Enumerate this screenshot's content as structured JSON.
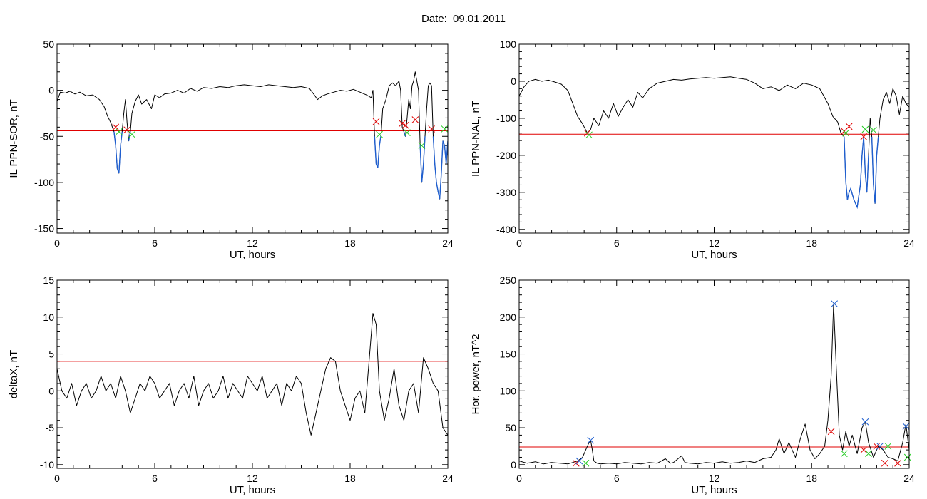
{
  "date_label": "Date:  09.01.2011",
  "chart_data": [
    {
      "id": "tl",
      "type": "line",
      "ylabel": "IL PPN-SOR, nT",
      "xlabel": "UT, hours",
      "xlim": [
        0,
        24
      ],
      "ylim": [
        -155,
        50
      ],
      "xticks": [
        0,
        6,
        12,
        18,
        24
      ],
      "yticks": [
        -150,
        -100,
        -50,
        0,
        50
      ],
      "grid": false,
      "series": [
        {
          "color": "#000000",
          "x": [
            0,
            0.2,
            0.5,
            0.8,
            1.1,
            1.4,
            1.8,
            2.2,
            2.6,
            2.9,
            3.1,
            3.3,
            3.5,
            3.6,
            3.7,
            3.8,
            3.9,
            4.0,
            4.1,
            4.2,
            4.3,
            4.4,
            4.5,
            4.6,
            4.8,
            5.0,
            5.2,
            5.5,
            5.8,
            6.0,
            6.3,
            6.6,
            7.0,
            7.4,
            7.8,
            8.2,
            8.6,
            9.0,
            9.5,
            10.0,
            10.5,
            11.0,
            11.5,
            12.0,
            12.5,
            13.0,
            13.5,
            14.0,
            14.5,
            15.0,
            15.5,
            15.8,
            16.0,
            16.3,
            16.6,
            17.0,
            17.4,
            17.8,
            18.2,
            18.6,
            19.0,
            19.3,
            19.4,
            19.5,
            19.6,
            19.7,
            19.8,
            19.9,
            20.0,
            20.2,
            20.4,
            20.6,
            20.8,
            21.0,
            21.1,
            21.2,
            21.3,
            21.4,
            21.5,
            21.6,
            21.7,
            21.8,
            21.9,
            22.0,
            22.1,
            22.2,
            22.3,
            22.4,
            22.5,
            22.6,
            22.7,
            22.8,
            22.9,
            23.0,
            23.1,
            23.2,
            23.3,
            23.4,
            23.5,
            23.6,
            23.7,
            23.8,
            23.9,
            24.0
          ],
          "y": [
            -12,
            -2,
            -3,
            -1,
            -4,
            -2,
            -6,
            -5,
            -10,
            -18,
            -28,
            -35,
            -45,
            -60,
            -85,
            -90,
            -60,
            -45,
            -25,
            -10,
            -35,
            -55,
            -45,
            -25,
            -12,
            -5,
            -15,
            -10,
            -20,
            -5,
            -8,
            -4,
            -3,
            0,
            -3,
            2,
            -1,
            3,
            2,
            4,
            3,
            5,
            6,
            5,
            4,
            6,
            5,
            4,
            3,
            4,
            2,
            -5,
            -10,
            -6,
            -4,
            -2,
            0,
            -1,
            1,
            -2,
            -5,
            -8,
            0,
            -50,
            -80,
            -84,
            -60,
            -48,
            -20,
            -10,
            5,
            8,
            5,
            10,
            0,
            -40,
            -45,
            -50,
            -30,
            -10,
            -20,
            5,
            10,
            20,
            10,
            0,
            -60,
            -100,
            -80,
            -50,
            -20,
            5,
            8,
            5,
            -50,
            -80,
            -100,
            -110,
            -118,
            -90,
            -55,
            -60,
            -80,
            -55
          ]
        }
      ],
      "hlines": [
        {
          "y": -44,
          "color": "#e00000"
        }
      ],
      "markers_red": [
        [
          3.6,
          -40
        ],
        [
          4.3,
          -43
        ],
        [
          19.6,
          -34
        ],
        [
          21.2,
          -36
        ],
        [
          21.4,
          -38
        ],
        [
          22.0,
          -32
        ],
        [
          23.0,
          -42
        ]
      ],
      "markers_green": [
        [
          3.8,
          -45
        ],
        [
          4.6,
          -48
        ],
        [
          19.8,
          -48
        ],
        [
          21.5,
          -46
        ],
        [
          22.4,
          -60
        ],
        [
          23.8,
          -42
        ]
      ]
    },
    {
      "id": "tr",
      "type": "line",
      "ylabel": "IL PPN-NAL, nT",
      "xlabel": "UT, hours",
      "xlim": [
        0,
        24
      ],
      "ylim": [
        -410,
        100
      ],
      "xticks": [
        0,
        6,
        12,
        18,
        24
      ],
      "yticks": [
        -400,
        -300,
        -200,
        -100,
        0,
        100
      ],
      "grid": false,
      "series": [
        {
          "color": "#000000",
          "x": [
            0,
            0.3,
            0.6,
            1.0,
            1.4,
            1.8,
            2.2,
            2.6,
            3.0,
            3.3,
            3.6,
            3.9,
            4.2,
            4.4,
            4.6,
            4.9,
            5.2,
            5.5,
            5.8,
            6.1,
            6.4,
            6.7,
            7.0,
            7.3,
            7.6,
            8.0,
            8.5,
            9.0,
            9.5,
            10.0,
            10.5,
            11.0,
            11.5,
            12.0,
            12.5,
            13.0,
            13.5,
            14.0,
            14.5,
            15.0,
            15.5,
            16.0,
            16.5,
            17.0,
            17.5,
            18.0,
            18.5,
            19.0,
            19.3,
            19.6,
            19.8,
            20.0,
            20.1,
            20.2,
            20.3,
            20.4,
            20.6,
            20.8,
            21.0,
            21.1,
            21.2,
            21.3,
            21.4,
            21.5,
            21.6,
            21.7,
            21.8,
            21.9,
            22.0,
            22.1,
            22.2,
            22.4,
            22.6,
            22.8,
            23.0,
            23.2,
            23.4,
            23.6,
            23.8,
            24.0
          ],
          "y": [
            -40,
            -15,
            0,
            5,
            0,
            3,
            -2,
            -8,
            -25,
            -60,
            -95,
            -115,
            -140,
            -130,
            -100,
            -120,
            -80,
            -100,
            -60,
            -95,
            -70,
            -50,
            -70,
            -30,
            -45,
            -20,
            -5,
            0,
            5,
            3,
            6,
            8,
            10,
            8,
            10,
            12,
            8,
            5,
            -5,
            -20,
            -15,
            -25,
            -10,
            -20,
            -5,
            -10,
            -20,
            -60,
            -95,
            -110,
            -140,
            -150,
            -270,
            -320,
            -300,
            -290,
            -320,
            -340,
            -280,
            -200,
            -150,
            -250,
            -300,
            -200,
            -100,
            -150,
            -280,
            -330,
            -200,
            -150,
            -100,
            -50,
            -30,
            -60,
            -20,
            -40,
            -90,
            -40,
            -60,
            -70
          ]
        }
      ],
      "hlines": [
        {
          "y": -143,
          "color": "#e00000"
        }
      ],
      "markers_red": [
        [
          4.2,
          -140
        ],
        [
          20.0,
          -135
        ],
        [
          20.3,
          -122
        ],
        [
          21.2,
          -150
        ]
      ],
      "markers_green": [
        [
          4.3,
          -145
        ],
        [
          20.1,
          -140
        ],
        [
          21.3,
          -130
        ],
        [
          21.8,
          -132
        ]
      ]
    },
    {
      "id": "bl",
      "type": "line",
      "ylabel": "deltaX, nT",
      "xlabel": "UT, hours",
      "xlim": [
        0,
        24
      ],
      "ylim": [
        -10.5,
        15
      ],
      "xticks": [
        0,
        6,
        12,
        18,
        24
      ],
      "yticks": [
        -10,
        -5,
        0,
        5,
        10,
        15
      ],
      "grid": false,
      "series": [
        {
          "color": "#000000",
          "x": [
            0,
            0.3,
            0.6,
            0.9,
            1.2,
            1.5,
            1.8,
            2.1,
            2.4,
            2.7,
            3.0,
            3.3,
            3.6,
            3.9,
            4.2,
            4.5,
            4.8,
            5.1,
            5.4,
            5.7,
            6.0,
            6.3,
            6.6,
            6.9,
            7.2,
            7.5,
            7.8,
            8.1,
            8.4,
            8.7,
            9.0,
            9.3,
            9.6,
            9.9,
            10.2,
            10.5,
            10.8,
            11.1,
            11.4,
            11.7,
            12.0,
            12.3,
            12.6,
            12.9,
            13.2,
            13.5,
            13.8,
            14.1,
            14.4,
            14.7,
            15.0,
            15.3,
            15.6,
            15.9,
            16.2,
            16.5,
            16.8,
            17.1,
            17.4,
            17.7,
            18.0,
            18.3,
            18.6,
            18.9,
            19.2,
            19.4,
            19.6,
            19.8,
            20.1,
            20.4,
            20.7,
            21.0,
            21.3,
            21.6,
            21.9,
            22.2,
            22.5,
            22.8,
            23.1,
            23.4,
            23.7,
            24.0
          ],
          "y": [
            3,
            0,
            -1,
            1,
            -2,
            0,
            1,
            -1,
            0,
            2,
            0,
            1,
            -1,
            2,
            0,
            -3,
            -1,
            1,
            0,
            2,
            1,
            -1,
            0,
            1,
            -2,
            0,
            1,
            -1,
            2,
            -2,
            0,
            1,
            -1,
            0,
            2,
            -1,
            1,
            0,
            -1,
            2,
            1,
            0,
            2,
            -1,
            0,
            1,
            -2,
            1,
            0,
            2,
            1,
            -3,
            -6,
            -3,
            0,
            3,
            4.5,
            4,
            0,
            -2,
            -4,
            -1,
            0,
            -3,
            5,
            10.5,
            9,
            0,
            -4,
            -1,
            3,
            -2,
            -4,
            0,
            1,
            -3,
            4.5,
            3,
            1,
            0,
            -5,
            -6
          ]
        }
      ],
      "hlines": [
        {
          "y": 5,
          "color": "#1a8fa0"
        },
        {
          "y": 4,
          "color": "#e00000"
        }
      ],
      "markers_red": [],
      "markers_green": []
    },
    {
      "id": "br",
      "type": "line",
      "ylabel": "Hor. power, nT^2",
      "xlabel": "UT, hours",
      "xlim": [
        0,
        24
      ],
      "ylim": [
        -5,
        250
      ],
      "xticks": [
        0,
        6,
        12,
        18,
        24
      ],
      "yticks": [
        0,
        50,
        100,
        150,
        200,
        250
      ],
      "grid": false,
      "series": [
        {
          "color": "#000000",
          "x": [
            0,
            0.5,
            1.0,
            1.5,
            2.0,
            2.5,
            3.0,
            3.3,
            3.6,
            3.9,
            4.1,
            4.3,
            4.4,
            4.5,
            4.6,
            4.8,
            5.0,
            5.5,
            6.0,
            6.5,
            7.0,
            7.5,
            8.0,
            8.5,
            9.0,
            9.3,
            9.5,
            10.0,
            10.2,
            10.5,
            11.0,
            11.5,
            12.0,
            12.5,
            13.0,
            13.5,
            14.0,
            14.5,
            15.0,
            15.5,
            15.8,
            16.0,
            16.3,
            16.6,
            17.0,
            17.3,
            17.6,
            17.9,
            18.2,
            18.5,
            18.8,
            19.0,
            19.2,
            19.35,
            19.5,
            19.7,
            19.9,
            20.1,
            20.3,
            20.5,
            20.8,
            21.1,
            21.3,
            21.5,
            21.8,
            22.1,
            22.4,
            22.7,
            23.0,
            23.3,
            23.6,
            23.8,
            24.0
          ],
          "y": [
            5,
            2,
            4,
            1,
            3,
            2,
            1,
            3,
            5,
            10,
            20,
            30,
            33,
            20,
            5,
            2,
            1,
            2,
            1,
            3,
            2,
            1,
            3,
            2,
            8,
            2,
            3,
            12,
            3,
            2,
            1,
            3,
            2,
            4,
            2,
            3,
            5,
            3,
            8,
            10,
            20,
            35,
            15,
            30,
            10,
            35,
            55,
            20,
            8,
            15,
            25,
            60,
            120,
            218,
            140,
            40,
            20,
            45,
            25,
            40,
            15,
            50,
            58,
            30,
            10,
            25,
            20,
            10,
            8,
            5,
            30,
            55,
            20
          ]
        }
      ],
      "hlines": [
        {
          "y": 24,
          "color": "#e00000"
        }
      ],
      "markers_red": [
        [
          3.5,
          2
        ],
        [
          19.2,
          45
        ],
        [
          21.2,
          20
        ],
        [
          22.0,
          25
        ],
        [
          22.5,
          2
        ],
        [
          23.3,
          2
        ]
      ],
      "markers_green": [
        [
          4.1,
          2
        ],
        [
          20.0,
          15
        ],
        [
          21.5,
          15
        ],
        [
          22.7,
          25
        ],
        [
          23.9,
          10
        ]
      ],
      "markers_blue": [
        [
          3.7,
          5
        ],
        [
          4.4,
          33
        ],
        [
          19.4,
          218
        ],
        [
          21.3,
          58
        ],
        [
          22.2,
          25
        ],
        [
          23.8,
          52
        ]
      ]
    }
  ]
}
